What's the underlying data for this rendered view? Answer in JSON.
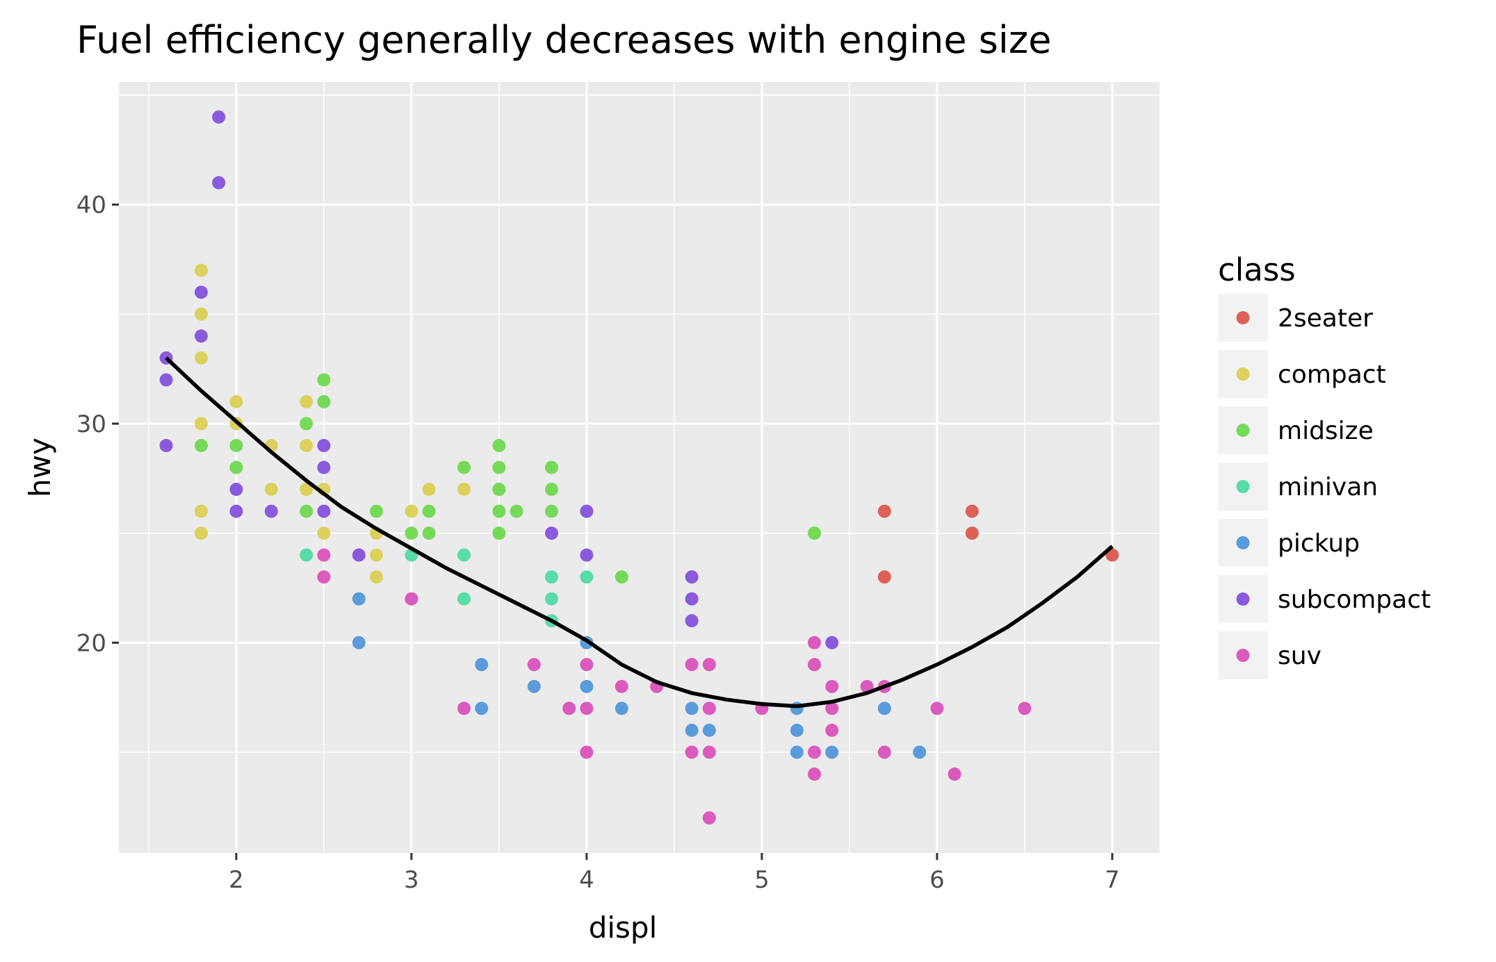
{
  "chart_data": {
    "type": "scatter",
    "title": "Fuel efficiency generally decreases with engine size",
    "xlabel": "displ",
    "ylabel": "hwy",
    "xlim": [
      1.33,
      7.27
    ],
    "ylim": [
      10.4,
      45.6
    ],
    "x_ticks": [
      2,
      3,
      4,
      5,
      6,
      7
    ],
    "y_ticks": [
      20,
      30,
      40
    ],
    "x_minor_gridlines": [
      1.5,
      2.5,
      3.5,
      4.5,
      5.5,
      6.5
    ],
    "y_minor_gridlines": [
      15,
      25,
      35,
      45
    ],
    "grid": true,
    "legend": {
      "title": "class",
      "placement": "right",
      "entries": [
        {
          "name": "2seater",
          "color": "#dd6157"
        },
        {
          "name": "compact",
          "color": "#dbd15c"
        },
        {
          "name": "midsize",
          "color": "#75da58"
        },
        {
          "name": "minivan",
          "color": "#58dcaa"
        },
        {
          "name": "pickup",
          "color": "#5a9bdb"
        },
        {
          "name": "subcompact",
          "color": "#8a5add"
        },
        {
          "name": "suv",
          "color": "#db5abd"
        }
      ]
    },
    "series": [
      {
        "name": "2seater",
        "points": [
          [
            5.7,
            26
          ],
          [
            5.7,
            23
          ],
          [
            6.2,
            26
          ],
          [
            6.2,
            25
          ],
          [
            7.0,
            24
          ]
        ]
      },
      {
        "name": "compact",
        "points": [
          [
            1.8,
            37
          ],
          [
            1.8,
            35
          ],
          [
            1.8,
            33
          ],
          [
            1.8,
            30
          ],
          [
            1.8,
            26
          ],
          [
            1.8,
            25
          ],
          [
            2.0,
            31
          ],
          [
            2.0,
            30
          ],
          [
            2.2,
            29
          ],
          [
            2.2,
            27
          ],
          [
            2.4,
            31
          ],
          [
            2.4,
            29
          ],
          [
            2.4,
            27
          ],
          [
            2.5,
            27
          ],
          [
            2.5,
            25
          ],
          [
            2.8,
            25
          ],
          [
            2.8,
            24
          ],
          [
            2.8,
            23
          ],
          [
            3.0,
            26
          ],
          [
            3.1,
            27
          ],
          [
            3.3,
            27
          ]
        ]
      },
      {
        "name": "midsize",
        "points": [
          [
            1.8,
            29
          ],
          [
            2.0,
            29
          ],
          [
            2.0,
            28
          ],
          [
            2.4,
            30
          ],
          [
            2.4,
            26
          ],
          [
            2.5,
            32
          ],
          [
            2.5,
            31
          ],
          [
            2.8,
            26
          ],
          [
            3.0,
            25
          ],
          [
            3.1,
            26
          ],
          [
            3.1,
            25
          ],
          [
            3.3,
            28
          ],
          [
            3.5,
            29
          ],
          [
            3.5,
            28
          ],
          [
            3.5,
            27
          ],
          [
            3.5,
            26
          ],
          [
            3.5,
            25
          ],
          [
            3.6,
            26
          ],
          [
            3.8,
            28
          ],
          [
            3.8,
            27
          ],
          [
            3.8,
            26
          ],
          [
            4.2,
            23
          ],
          [
            5.3,
            25
          ]
        ]
      },
      {
        "name": "minivan",
        "points": [
          [
            2.4,
            24
          ],
          [
            3.0,
            24
          ],
          [
            3.3,
            24
          ],
          [
            3.3,
            22
          ],
          [
            3.8,
            23
          ],
          [
            3.8,
            22
          ],
          [
            3.8,
            21
          ],
          [
            4.0,
            23
          ]
        ]
      },
      {
        "name": "pickup",
        "points": [
          [
            2.7,
            22
          ],
          [
            2.7,
            20
          ],
          [
            3.4,
            19
          ],
          [
            3.4,
            17
          ],
          [
            3.7,
            18
          ],
          [
            4.0,
            20
          ],
          [
            4.0,
            18
          ],
          [
            4.2,
            17
          ],
          [
            4.6,
            17
          ],
          [
            4.6,
            16
          ],
          [
            4.7,
            17
          ],
          [
            4.7,
            16
          ],
          [
            5.2,
            17
          ],
          [
            5.2,
            16
          ],
          [
            5.2,
            15
          ],
          [
            5.4,
            15
          ],
          [
            5.7,
            17
          ],
          [
            5.9,
            15
          ]
        ]
      },
      {
        "name": "subcompact",
        "points": [
          [
            1.6,
            33
          ],
          [
            1.6,
            32
          ],
          [
            1.6,
            29
          ],
          [
            1.8,
            36
          ],
          [
            1.8,
            34
          ],
          [
            1.9,
            44
          ],
          [
            1.9,
            41
          ],
          [
            2.0,
            27
          ],
          [
            2.0,
            26
          ],
          [
            2.2,
            26
          ],
          [
            2.5,
            29
          ],
          [
            2.5,
            28
          ],
          [
            2.5,
            26
          ],
          [
            2.7,
            24
          ],
          [
            3.8,
            25
          ],
          [
            4.0,
            26
          ],
          [
            4.0,
            24
          ],
          [
            4.6,
            23
          ],
          [
            4.6,
            22
          ],
          [
            4.6,
            21
          ],
          [
            5.4,
            20
          ]
        ]
      },
      {
        "name": "suv",
        "points": [
          [
            2.5,
            24
          ],
          [
            2.5,
            23
          ],
          [
            3.0,
            22
          ],
          [
            3.3,
            17
          ],
          [
            3.7,
            19
          ],
          [
            3.9,
            17
          ],
          [
            4.0,
            19
          ],
          [
            4.0,
            17
          ],
          [
            4.0,
            15
          ],
          [
            4.2,
            18
          ],
          [
            4.4,
            18
          ],
          [
            4.6,
            19
          ],
          [
            4.6,
            15
          ],
          [
            4.7,
            19
          ],
          [
            4.7,
            17
          ],
          [
            4.7,
            15
          ],
          [
            4.7,
            12
          ],
          [
            5.0,
            17
          ],
          [
            5.3,
            20
          ],
          [
            5.3,
            19
          ],
          [
            5.3,
            15
          ],
          [
            5.3,
            14
          ],
          [
            5.4,
            18
          ],
          [
            5.4,
            17
          ],
          [
            5.4,
            16
          ],
          [
            5.6,
            18
          ],
          [
            5.7,
            18
          ],
          [
            5.7,
            15
          ],
          [
            6.0,
            17
          ],
          [
            6.1,
            14
          ],
          [
            6.5,
            17
          ]
        ]
      }
    ],
    "smooth_line": {
      "method": "loess",
      "color": "#000000",
      "points": [
        [
          1.6,
          33.0
        ],
        [
          1.8,
          31.5
        ],
        [
          2.0,
          30.1
        ],
        [
          2.2,
          28.7
        ],
        [
          2.4,
          27.4
        ],
        [
          2.6,
          26.2
        ],
        [
          2.8,
          25.2
        ],
        [
          3.0,
          24.3
        ],
        [
          3.2,
          23.4
        ],
        [
          3.4,
          22.6
        ],
        [
          3.6,
          21.8
        ],
        [
          3.8,
          21.0
        ],
        [
          4.0,
          20.1
        ],
        [
          4.2,
          19.0
        ],
        [
          4.4,
          18.2
        ],
        [
          4.6,
          17.7
        ],
        [
          4.8,
          17.4
        ],
        [
          5.0,
          17.2
        ],
        [
          5.2,
          17.1
        ],
        [
          5.4,
          17.3
        ],
        [
          5.6,
          17.7
        ],
        [
          5.8,
          18.3
        ],
        [
          6.0,
          19.0
        ],
        [
          6.2,
          19.8
        ],
        [
          6.4,
          20.7
        ],
        [
          6.6,
          21.8
        ],
        [
          6.8,
          23.0
        ],
        [
          7.0,
          24.4
        ]
      ]
    }
  }
}
